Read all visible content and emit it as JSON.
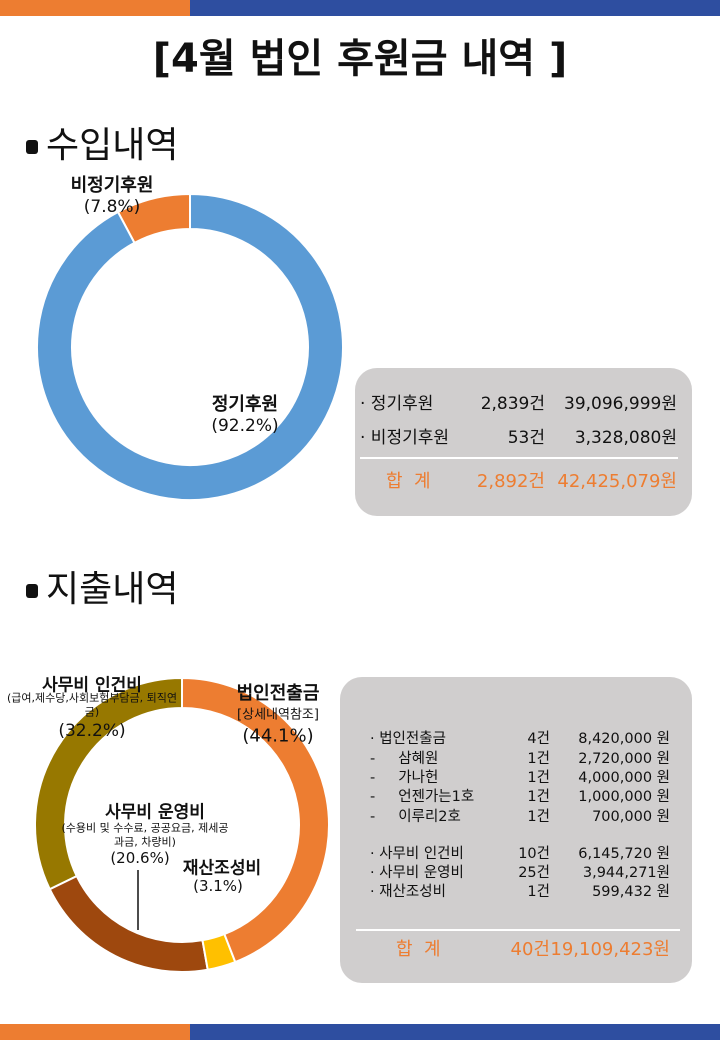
{
  "header": {
    "title": "[4월 법인 후원금 내역 ]"
  },
  "sections": [
    "수입내역",
    "지출내역"
  ],
  "chart_data": [
    {
      "type": "pie",
      "donut": true,
      "categories": [
        "정기후원",
        "비정기후원"
      ],
      "values": [
        92.2,
        7.8
      ],
      "value_labels": [
        "(92.2%)",
        "(7.8%)"
      ],
      "colors": [
        "#5b9bd5",
        "#ed7d31"
      ]
    },
    {
      "type": "pie",
      "donut": true,
      "categories": [
        "법인전출금",
        "재산조성비",
        "사무비 운영비",
        "사무비 인건비"
      ],
      "category_notes": [
        "[상세내역참조]",
        null,
        "(수용비 및 수수료, 공공요금, 제세공과금, 차량비)",
        "(급여,제수당,사회보험부담금, 퇴직연금)"
      ],
      "values": [
        44.1,
        3.1,
        20.6,
        32.2
      ],
      "value_labels": [
        "(44.1%)",
        "(3.1%)",
        "(20.6%)",
        "(32.2%)"
      ],
      "colors": [
        "#ed7d31",
        "#ffc000",
        "#9e480e",
        "#977800"
      ]
    }
  ],
  "income_table": {
    "rows": [
      [
        "· 정기후원",
        "2,839건",
        "39,096,999원"
      ],
      [
        "· 비정기후원",
        "53건",
        "3,328,080원"
      ]
    ],
    "total": [
      "합  계",
      "2,892건",
      "42,425,079원"
    ]
  },
  "expense_table": {
    "rows": [
      [
        "· 법인전출금",
        "4건",
        "8,420,000 원"
      ],
      [
        "-     삼혜원",
        "1건",
        "2,720,000 원"
      ],
      [
        "-     가나헌",
        "1건",
        "4,000,000 원"
      ],
      [
        "-     언젠가는1호",
        "1건",
        "1,000,000 원"
      ],
      [
        "-     이루리2호",
        "1건",
        "700,000 원"
      ],
      [
        "· 사무비 인건비",
        "10건",
        "6,145,720 원"
      ],
      [
        "· 사무비 운영비",
        "25건",
        "3,944,271원"
      ],
      [
        "· 재산조성비",
        "1건",
        "599,432 원"
      ]
    ],
    "total": [
      "합  계",
      "40건",
      "19,109,423원"
    ]
  }
}
